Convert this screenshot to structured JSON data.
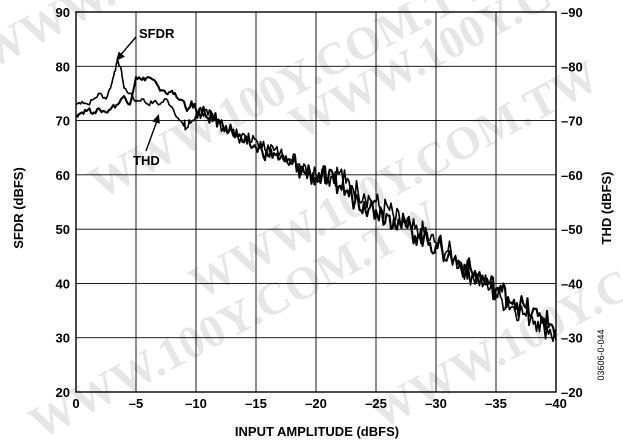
{
  "chart_data": {
    "type": "line",
    "xlabel": "INPUT AMPLITUDE (dBFS)",
    "ylabel_left": "SFDR (dBFS)",
    "ylabel_right": "THD (dBFS)",
    "xlim": [
      0,
      -40
    ],
    "ylim_left": [
      20,
      90
    ],
    "ylim_right": [
      -20,
      -90
    ],
    "x_ticks": [
      "0",
      "–5",
      "–10",
      "–15",
      "–20",
      "–25",
      "–30",
      "–35",
      "–40"
    ],
    "y_ticks_left": [
      "20",
      "30",
      "40",
      "50",
      "60",
      "70",
      "80",
      "90"
    ],
    "y_ticks_right": [
      "–20",
      "–30",
      "–40",
      "–50",
      "–60",
      "–70",
      "–80",
      "–90"
    ],
    "grid": true,
    "annotations": [
      "SFDR",
      "THD"
    ],
    "figure_id": "03606-0-044",
    "watermark": "WWW.100Y.COM.TW",
    "series": [
      {
        "name": "SFDR",
        "axis": "left",
        "x": [
          0,
          -0.5,
          -1,
          -1.5,
          -2,
          -2.5,
          -3,
          -3.2,
          -3.5,
          -3.8,
          -4,
          -4.5,
          -5,
          -5.5,
          -6,
          -6.5,
          -7,
          -7.5,
          -8,
          -8.5,
          -9,
          -9.2,
          -9.5,
          -10,
          -10.5,
          -11,
          -11.5,
          -12,
          -12.5,
          -13,
          -13.5,
          -14,
          -14.5,
          -15,
          -15.5,
          -16,
          -16.5,
          -17,
          -17.5,
          -18,
          -18.5,
          -19,
          -19.5,
          -20,
          -20.5,
          -21,
          -21.5,
          -22,
          -22.5,
          -23,
          -23.5,
          -24,
          -24.5,
          -25,
          -25.5,
          -26,
          -26.5,
          -27,
          -27.5,
          -28,
          -28.5,
          -29,
          -29.5,
          -30,
          -30.5,
          -31,
          -31.5,
          -32,
          -32.5,
          -33,
          -33.5,
          -34,
          -34.5,
          -35,
          -35.5,
          -36,
          -36.5,
          -37,
          -37.5,
          -38,
          -38.5,
          -39,
          -39.5,
          -40
        ],
        "y": [
          73,
          73.5,
          73,
          74,
          75,
          74,
          77,
          79,
          81,
          79,
          76,
          75,
          73.5,
          74,
          73,
          73.5,
          73,
          74,
          72.5,
          70.5,
          69,
          68.5,
          69.5,
          71,
          71.5,
          71,
          70,
          69.5,
          68.5,
          68,
          67,
          67.5,
          66,
          66.5,
          65,
          65.5,
          64.5,
          64,
          63.5,
          62.5,
          62,
          62,
          60.5,
          60,
          61,
          59.5,
          60,
          60.5,
          58.5,
          58,
          57,
          56.5,
          55.5,
          55,
          53.5,
          54,
          52,
          51.5,
          51,
          50,
          49,
          49.5,
          48,
          47.5,
          46,
          46,
          44.5,
          44,
          42.5,
          41.5,
          41,
          40,
          39,
          38,
          37,
          36.5,
          35.5,
          35,
          34,
          34,
          33,
          32,
          31.5,
          29.5
        ]
      },
      {
        "name": "THD",
        "axis": "left",
        "x": [
          0,
          -0.5,
          -1,
          -1.5,
          -2,
          -2.5,
          -3,
          -3.5,
          -4,
          -4.5,
          -5,
          -5.5,
          -6,
          -6.5,
          -7,
          -7.5,
          -8,
          -8.5,
          -9,
          -9.5,
          -10,
          -10.5,
          -11,
          -11.5,
          -12,
          -12.5,
          -13,
          -13.5,
          -14,
          -14.5,
          -15,
          -15.5,
          -16,
          -16.5,
          -17,
          -17.5,
          -18,
          -18.5,
          -19,
          -19.5,
          -20,
          -20.5,
          -21,
          -21.5,
          -22,
          -22.5,
          -23,
          -23.5,
          -24,
          -24.5,
          -25,
          -25.5,
          -26,
          -26.5,
          -27,
          -27.5,
          -28,
          -28.5,
          -29,
          -29.5,
          -30,
          -30.5,
          -31,
          -31.5,
          -32,
          -32.5,
          -33,
          -33.5,
          -34,
          -34.5,
          -35,
          -35.5,
          -36,
          -36.5,
          -37,
          -37.5,
          -38,
          -38.5,
          -39,
          -39.5,
          -40
        ],
        "y": [
          71,
          71.5,
          72,
          71.5,
          72,
          71.5,
          72.5,
          73,
          74.5,
          73,
          78,
          77.5,
          78,
          77.5,
          75.5,
          75,
          75.5,
          74,
          73.5,
          72.5,
          72,
          71.5,
          70.5,
          70.5,
          69.5,
          69,
          68,
          67,
          66,
          65.5,
          65,
          64.5,
          63.5,
          64,
          63,
          62.5,
          62,
          61.5,
          60.5,
          60.5,
          59.5,
          60,
          59,
          58.5,
          58,
          57,
          56,
          55.5,
          55,
          54,
          53.5,
          53,
          52.5,
          52,
          51,
          50.5,
          49.5,
          49,
          48.5,
          47.5,
          47,
          46.5,
          45,
          44.5,
          43.5,
          43,
          42,
          41.5,
          40.5,
          40,
          39,
          38.5,
          37.5,
          37,
          36,
          35.5,
          34.5,
          34,
          33.5,
          32.5,
          31.5
        ]
      }
    ]
  }
}
